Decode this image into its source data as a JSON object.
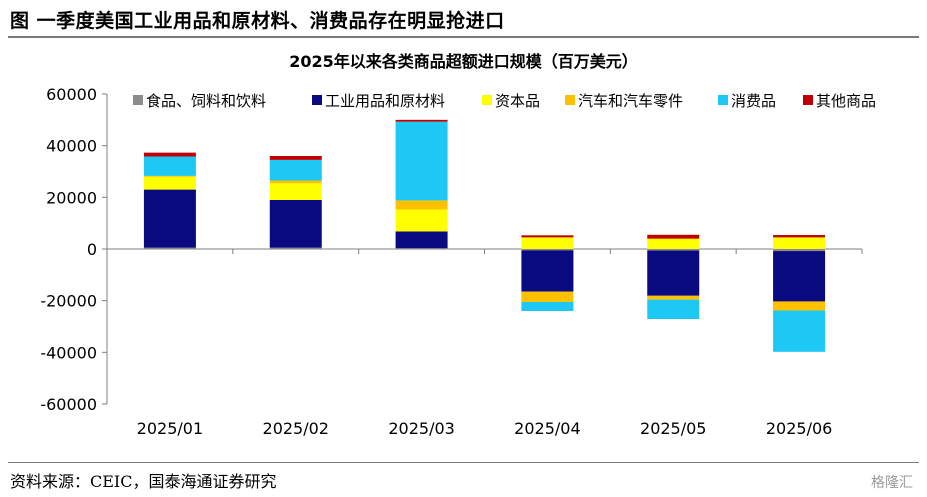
{
  "figure_title": "图    一季度美国工业用品和原材料、消费品存在明显抢进口",
  "source": "资料来源：CEIC，国泰海通证券研究",
  "watermark": "格隆汇",
  "colors": {
    "食品、饲料和饮料": "#8c8c8c",
    "工业用品和原材料": "#0a0a80",
    "资本品": "#ffff00",
    "汽车和汽车零件": "#ffc000",
    "消费品": "#1ec8f5",
    "其他商品": "#c00000"
  },
  "chart_data": {
    "type": "bar",
    "stacked": true,
    "title": "2025年以来各类商品超额进口规模（百万美元）",
    "xlabel": "",
    "ylabel": "",
    "ylim": [
      -60000,
      60000
    ],
    "yticks": [
      60000,
      40000,
      20000,
      0,
      -20000,
      -40000,
      -60000
    ],
    "grid": false,
    "legend_position": "top",
    "categories": [
      "2025/01",
      "2025/02",
      "2025/03",
      "2025/04",
      "2025/05",
      "2025/06"
    ],
    "series": [
      {
        "name": "食品、饲料和饮料",
        "values": [
          500,
          500,
          300,
          -500,
          -600,
          -800
        ]
      },
      {
        "name": "工业用品和原材料",
        "values": [
          22500,
          18500,
          6500,
          -16000,
          -17500,
          -19500
        ]
      },
      {
        "name": "资本品",
        "values": [
          5000,
          6500,
          8500,
          4500,
          4000,
          4500
        ]
      },
      {
        "name": "汽车和汽车零件",
        "values": [
          300,
          1000,
          3500,
          -4000,
          -1500,
          -3500
        ]
      },
      {
        "name": "消费品",
        "values": [
          7500,
          8000,
          30500,
          -3500,
          -7500,
          -16000
        ]
      },
      {
        "name": "其他商品",
        "values": [
          1500,
          1500,
          700,
          800,
          1500,
          900
        ]
      }
    ]
  }
}
